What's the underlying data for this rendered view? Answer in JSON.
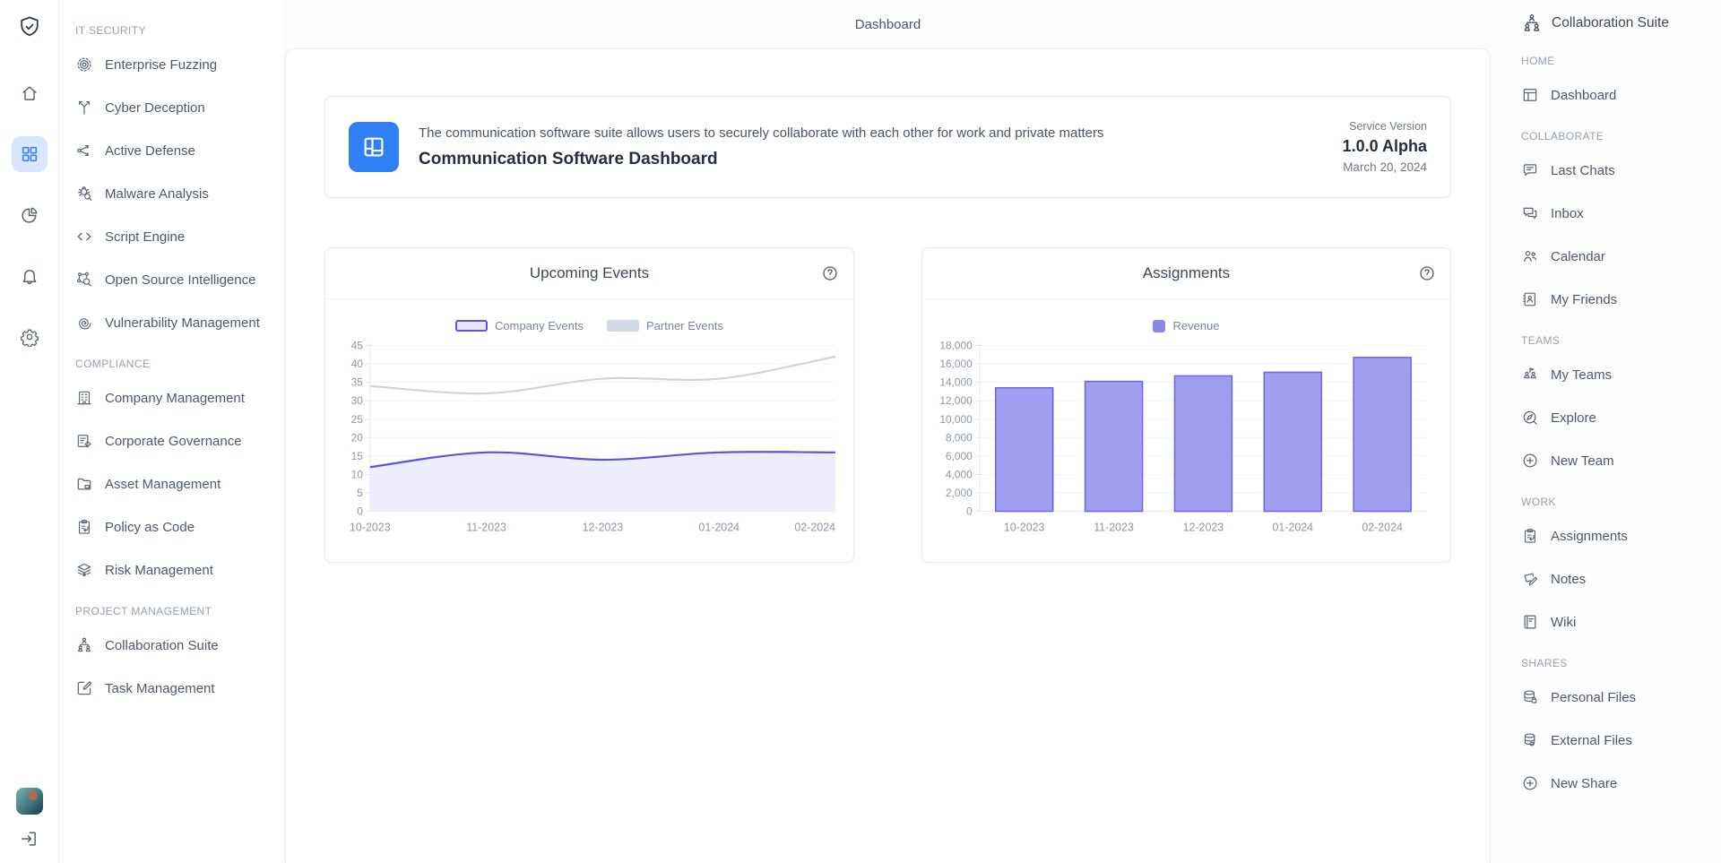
{
  "page": {
    "title": "Dashboard"
  },
  "rail": {
    "logo_icon": "shield-check-icon",
    "items": [
      {
        "name": "home-button",
        "icon": "home-icon",
        "active": false
      },
      {
        "name": "apps-button",
        "icon": "grid-icon",
        "active": true
      },
      {
        "name": "analytics-button",
        "icon": "pie-chart-icon",
        "active": false
      },
      {
        "name": "notifications-button",
        "icon": "bell-icon",
        "active": false
      },
      {
        "name": "settings-button",
        "icon": "gear-icon",
        "active": false
      }
    ],
    "logout_icon": "logout-icon"
  },
  "left_sidebar": {
    "sections": [
      {
        "title": "IT SECURITY",
        "items": [
          {
            "label": "Enterprise Fuzzing",
            "icon": "target-icon"
          },
          {
            "label": "Cyber Deception",
            "icon": "branch-icon"
          },
          {
            "label": "Active Defense",
            "icon": "workflow-icon"
          },
          {
            "label": "Malware Analysis",
            "icon": "bug-search-icon"
          },
          {
            "label": "Script Engine",
            "icon": "code-icon"
          },
          {
            "label": "Open Source Intelligence",
            "icon": "network-search-icon"
          },
          {
            "label": "Vulnerability Management",
            "icon": "fingerprint-icon"
          }
        ]
      },
      {
        "title": "COMPLIANCE",
        "items": [
          {
            "label": "Company Management",
            "icon": "building-icon"
          },
          {
            "label": "Corporate Governance",
            "icon": "document-gear-icon"
          },
          {
            "label": "Asset Management",
            "icon": "folder-icon"
          },
          {
            "label": "Policy as Code",
            "icon": "clipboard-arrow-icon"
          },
          {
            "label": "Risk Management",
            "icon": "layers-eye-icon"
          }
        ]
      },
      {
        "title": "PROJECT MANAGEMENT",
        "items": [
          {
            "label": "Collaboration Suite",
            "icon": "org-people-icon"
          },
          {
            "label": "Task Management",
            "icon": "edit-square-icon"
          }
        ]
      }
    ]
  },
  "info_card": {
    "icon": "dashboard-layout-icon",
    "description": "The communication software suite allows users to securely collaborate with each other for work and private matters",
    "title": "Communication Software Dashboard",
    "version_label": "Service Version",
    "version": "1.0.0 Alpha",
    "date": "March 20, 2024"
  },
  "right_sidebar": {
    "title": "Collaboration Suite",
    "icon": "org-people-icon",
    "sections": [
      {
        "title": "HOME",
        "items": [
          {
            "label": "Dashboard",
            "icon": "window-icon"
          }
        ]
      },
      {
        "title": "COLLABORATE",
        "items": [
          {
            "label": "Last Chats",
            "icon": "chat-icon"
          },
          {
            "label": "Inbox",
            "icon": "chats-icon"
          },
          {
            "label": "Calendar",
            "icon": "people-icon"
          },
          {
            "label": "My Friends",
            "icon": "address-book-icon"
          }
        ]
      },
      {
        "title": "TEAMS",
        "items": [
          {
            "label": "My Teams",
            "icon": "teams-flag-icon"
          },
          {
            "label": "Explore",
            "icon": "compass-icon"
          },
          {
            "label": "New Team",
            "icon": "plus-circle-icon"
          }
        ]
      },
      {
        "title": "WORK",
        "items": [
          {
            "label": "Assignments",
            "icon": "clipboard-arrow-icon"
          },
          {
            "label": "Notes",
            "icon": "note-pencil-icon"
          },
          {
            "label": "Wiki",
            "icon": "notebook-icon"
          }
        ]
      },
      {
        "title": "SHARES",
        "items": [
          {
            "label": "Personal Files",
            "icon": "database-lock-icon"
          },
          {
            "label": "External Files",
            "icon": "database-icon"
          },
          {
            "label": "New Share",
            "icon": "plus-circle-icon"
          }
        ]
      }
    ]
  },
  "chart_data": [
    {
      "type": "line",
      "title": "Upcoming Events",
      "x": [
        "10-2023",
        "11-2023",
        "12-2023",
        "01-2024",
        "02-2024"
      ],
      "series": [
        {
          "name": "Company Events",
          "values": [
            12,
            16,
            14,
            16,
            16
          ],
          "color": "#5b55dd",
          "area_fill": "#ecebfa",
          "swatch": {
            "fill": "#e9e8fb",
            "border": "#5b55dd"
          }
        },
        {
          "name": "Partner Events",
          "values": [
            34,
            32,
            36,
            36,
            42
          ],
          "color": "#cbd5e1",
          "swatch": {
            "fill": "#cfd8e3",
            "border": "#cfd8e3"
          }
        }
      ],
      "ylim": [
        0,
        45
      ],
      "ytick_step": 5,
      "grid": true,
      "legend_position": "top",
      "smooth": true
    },
    {
      "type": "bar",
      "title": "Assignments",
      "categories": [
        "10-2023",
        "11-2023",
        "12-2023",
        "01-2024",
        "02-2024"
      ],
      "series": [
        {
          "name": "Revenue",
          "values": [
            13400,
            14100,
            14700,
            15100,
            16700
          ],
          "color": "#a19df0",
          "border_color": "#6f6ae0",
          "swatch": {
            "fill": "#8b87e8",
            "border": "#8b87e8"
          }
        }
      ],
      "ylim": [
        0,
        18000
      ],
      "ytick_step": 2000,
      "grid": true,
      "legend_position": "top"
    }
  ],
  "colors": {
    "accent": "#3b82f6",
    "rail_active_bg": "#d8e7fd",
    "info_icon_bg": "#2f7ff7",
    "company_events_line": "#5b55dd",
    "partner_events_line": "#cbd5e1",
    "revenue_bar": "#a19df0",
    "revenue_bar_border": "#6f6ae0"
  }
}
